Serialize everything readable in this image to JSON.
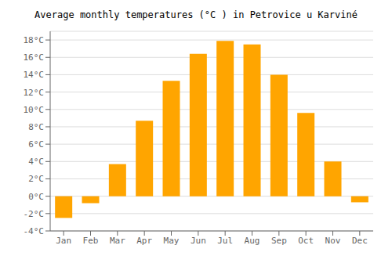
{
  "chart_data": {
    "type": "bar",
    "title": "Average monthly temperatures (°C ) in Petrovice u Karviné",
    "categories": [
      "Jan",
      "Feb",
      "Mar",
      "Apr",
      "May",
      "Jun",
      "Jul",
      "Aug",
      "Sep",
      "Oct",
      "Nov",
      "Dec"
    ],
    "values": [
      -2.5,
      -0.8,
      3.7,
      8.7,
      13.3,
      16.4,
      17.9,
      17.5,
      14.0,
      9.6,
      4.0,
      -0.7
    ],
    "color": "#FFA500",
    "ylim": [
      -4,
      19
    ],
    "yticks": [
      {
        "value": -4,
        "label": "-4°C"
      },
      {
        "value": -2,
        "label": "-2°C"
      },
      {
        "value": 0,
        "label": "0°C"
      },
      {
        "value": 2,
        "label": "2°C"
      },
      {
        "value": 4,
        "label": "4°C"
      },
      {
        "value": 6,
        "label": "6°C"
      },
      {
        "value": 8,
        "label": "8°C"
      },
      {
        "value": 10,
        "label": "10°C"
      },
      {
        "value": 12,
        "label": "12°C"
      },
      {
        "value": 14,
        "label": "14°C"
      },
      {
        "value": 16,
        "label": "16°C"
      },
      {
        "value": 18,
        "label": "18°C"
      }
    ],
    "grid": true
  }
}
